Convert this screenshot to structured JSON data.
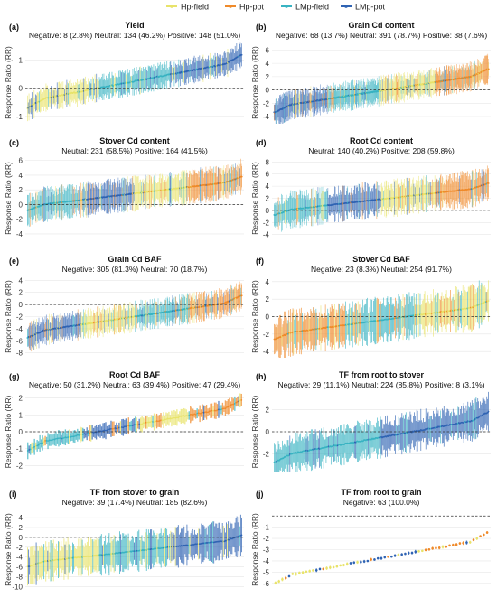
{
  "legend": {
    "items": [
      {
        "label": "Hp-field",
        "color": "#e8e36a"
      },
      {
        "label": "Hp-pot",
        "color": "#ef8a2a"
      },
      {
        "label": "LMp-field",
        "color": "#38b3c2"
      },
      {
        "label": "LMp-pot",
        "color": "#2f63b3"
      }
    ]
  },
  "y_axis_title": "Response Ratio (RR)",
  "chart_data": [
    {
      "type": "scatter",
      "tag": "(a)",
      "title": "Yield",
      "subtitle": "Negative: 8 (2.8%)  Neutral: 134 (46.2%)  Positive: 148 (51.0%)",
      "ylabel": "Response Ratio (RR)",
      "ylim": [
        -1.2,
        1.6
      ],
      "yticks": [
        "-1",
        "0",
        "1"
      ],
      "reference_line": 0,
      "n_points": 290,
      "sorted_estimate_range": [
        -0.7,
        1.2
      ],
      "ci_halfwidth": 0.35,
      "group_order": [
        "Hp-field",
        "LMp-field",
        "LMp-pot"
      ]
    },
    {
      "type": "scatter",
      "tag": "(b)",
      "title": "Grain Cd content",
      "subtitle": "Negative: 68 (13.7%)  Neutral: 391 (78.7%)  Positive: 38 (7.6%)",
      "ylabel": "Response Ratio (RR)",
      "ylim": [
        -4.8,
        7
      ],
      "yticks": [
        "-4",
        "-2",
        "0",
        "2",
        "4",
        "6"
      ],
      "reference_line": 0,
      "n_points": 497,
      "sorted_estimate_range": [
        -3.4,
        3.2
      ],
      "ci_halfwidth": 1.6,
      "group_order": [
        "LMp-pot",
        "LMp-field",
        "Hp-field",
        "Hp-pot"
      ]
    },
    {
      "type": "scatter",
      "tag": "(c)",
      "title": "Stover Cd content",
      "subtitle": "Neutral: 231 (58.5%)  Positive: 164 (41.5%)",
      "ylabel": "Response Ratio (RR)",
      "ylim": [
        -4.5,
        6.2
      ],
      "yticks": [
        "-4",
        "-2",
        "0",
        "2",
        "4",
        "6"
      ],
      "reference_line": 0,
      "n_points": 395,
      "sorted_estimate_range": [
        -0.8,
        3.8
      ],
      "ci_halfwidth": 1.7,
      "group_order": [
        "LMp-field",
        "LMp-pot",
        "Hp-field",
        "Hp-pot"
      ]
    },
    {
      "type": "scatter",
      "tag": "(d)",
      "title": "Root Cd content",
      "subtitle": "Neutral: 140 (40.2%)  Positive: 208 (59.8%)",
      "ylabel": "Response Ratio (RR)",
      "ylim": [
        -4.5,
        8.5
      ],
      "yticks": [
        "-4",
        "-2",
        "0",
        "2",
        "4",
        "6",
        "8"
      ],
      "reference_line": 0,
      "n_points": 348,
      "sorted_estimate_range": [
        -0.8,
        4.5
      ],
      "ci_halfwidth": 2.2,
      "group_order": [
        "LMp-field",
        "LMp-pot",
        "Hp-field",
        "Hp-pot"
      ]
    },
    {
      "type": "scatter",
      "tag": "(e)",
      "title": "Grain Cd BAF",
      "subtitle": "Negative: 305 (81.3%)  Neutral: 70 (18.7%)",
      "ylabel": "Response Ratio (RR)",
      "ylim": [
        -8.5,
        4.5
      ],
      "yticks": [
        "-8",
        "-6",
        "-4",
        "-2",
        "0",
        "2",
        "4"
      ],
      "reference_line": 0,
      "n_points": 375,
      "sorted_estimate_range": [
        -5.5,
        1.5
      ],
      "ci_halfwidth": 1.8,
      "group_order": [
        "LMp-pot",
        "Hp-field",
        "LMp-field",
        "Hp-pot"
      ]
    },
    {
      "type": "scatter",
      "tag": "(f)",
      "title": "Stover Cd BAF",
      "subtitle": "Negative: 23 (8.3%)  Neutral: 254 (91.7%)",
      "ylabel": "Response Ratio (RR)",
      "ylim": [
        -4.5,
        4.5
      ],
      "yticks": [
        "-4",
        "-2",
        "0",
        "2",
        "4"
      ],
      "reference_line": 0,
      "n_points": 277,
      "sorted_estimate_range": [
        -2.6,
        1.8
      ],
      "ci_halfwidth": 1.9,
      "group_order": [
        "Hp-pot",
        "LMp-field",
        "Hp-field"
      ]
    },
    {
      "type": "scatter",
      "tag": "(g)",
      "title": "Root Cd BAF",
      "subtitle": "Negative: 50 (31.2%)  Neutral: 63 (39.4%)  Positive: 47 (29.4%)",
      "ylabel": "Response Ratio (RR)",
      "ylim": [
        -2.3,
        2.3
      ],
      "yticks": [
        "-2",
        "-1",
        "0",
        "1",
        "2"
      ],
      "reference_line": 0,
      "n_points": 160,
      "sorted_estimate_range": [
        -1.1,
        1.9
      ],
      "ci_halfwidth": 0.35,
      "group_order": [
        "LMp-field",
        "LMp-pot",
        "Hp-field",
        "Hp-pot"
      ]
    },
    {
      "type": "scatter",
      "tag": "(h)",
      "title": "TF from root to stover",
      "subtitle": "Negative: 29 (11.1%)  Neutral: 224 (85.8%)  Positive: 8 (3.1%)",
      "ylabel": "Response Ratio (RR)",
      "ylim": [
        -3.5,
        3.5
      ],
      "yticks": [
        "-2",
        "0",
        "2"
      ],
      "reference_line": 0,
      "n_points": 261,
      "sorted_estimate_range": [
        -2.8,
        1.8
      ],
      "ci_halfwidth": 1.3,
      "group_order": [
        "LMp-field",
        "LMp-pot"
      ]
    },
    {
      "type": "scatter",
      "tag": "(i)",
      "title": "TF from stover to grain",
      "subtitle": "Negative: 39 (17.4%)  Neutral: 185 (82.6%)",
      "ylabel": "Response Ratio (RR)",
      "ylim": [
        -10.5,
        5.5
      ],
      "yticks": [
        "-10",
        "-8",
        "-6",
        "-4",
        "-2",
        "0",
        "2",
        "4"
      ],
      "reference_line": 0,
      "n_points": 224,
      "sorted_estimate_range": [
        -6.0,
        0.4
      ],
      "ci_halfwidth": 3.0,
      "group_order": [
        "Hp-field",
        "LMp-field",
        "LMp-pot"
      ]
    },
    {
      "type": "scatter",
      "tag": "(j)",
      "title": "TF from root to grain",
      "subtitle": "Negative: 63 (100.0%)",
      "ylabel": "Response Ratio (RR)",
      "ylim": [
        -6.5,
        0.5
      ],
      "yticks": [
        "-1",
        "-2",
        "-3",
        "-4",
        "-5",
        "-6"
      ],
      "reference_line": 0,
      "n_points": 63,
      "sorted_estimate_range": [
        -6.0,
        -1.5
      ],
      "ci_halfwidth": 0.12,
      "group_order": [
        "Hp-field",
        "LMp-pot",
        "Hp-pot"
      ]
    }
  ]
}
